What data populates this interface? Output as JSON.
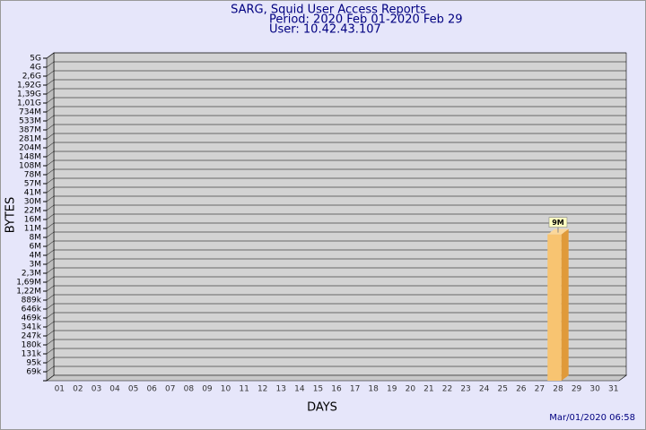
{
  "chart_data": {
    "type": "bar",
    "title": "SARG, Squid User Access Reports",
    "subtitle": [
      "Period: 2020 Feb 01-2020 Feb 29",
      "User: 10.42.43.107"
    ],
    "ylabel": "BYTES",
    "xlabel": "DAYS",
    "annotation": "Mar/01/2020 06:58",
    "categories": [
      "01",
      "02",
      "03",
      "04",
      "05",
      "06",
      "07",
      "08",
      "09",
      "10",
      "11",
      "12",
      "13",
      "14",
      "15",
      "16",
      "17",
      "18",
      "19",
      "20",
      "21",
      "22",
      "23",
      "24",
      "25",
      "26",
      "27",
      "28",
      "29",
      "30",
      "31"
    ],
    "values": [
      null,
      null,
      null,
      null,
      null,
      null,
      null,
      null,
      null,
      null,
      null,
      null,
      null,
      null,
      null,
      null,
      null,
      null,
      null,
      null,
      null,
      null,
      null,
      null,
      null,
      null,
      null,
      9000000,
      null,
      null,
      null
    ],
    "value_labels": [
      null,
      null,
      null,
      null,
      null,
      null,
      null,
      null,
      null,
      null,
      null,
      null,
      null,
      null,
      null,
      null,
      null,
      null,
      null,
      null,
      null,
      null,
      null,
      null,
      null,
      null,
      null,
      "9M",
      null,
      null,
      null
    ],
    "color": "#f8c471",
    "ylim": [
      0,
      5000000000
    ],
    "yticks": [
      {
        "value": 69000,
        "label": "69k"
      },
      {
        "value": 95000,
        "label": "95k"
      },
      {
        "value": 131000,
        "label": "131k"
      },
      {
        "value": 180000,
        "label": "180k"
      },
      {
        "value": 247000,
        "label": "247k"
      },
      {
        "value": 341000,
        "label": "341k"
      },
      {
        "value": 469000,
        "label": "469k"
      },
      {
        "value": 646000,
        "label": "646k"
      },
      {
        "value": 889000,
        "label": "889k"
      },
      {
        "value": 1220000,
        "label": "1,22M"
      },
      {
        "value": 1690000,
        "label": "1,69M"
      },
      {
        "value": 2300000,
        "label": "2,3M"
      },
      {
        "value": 3000000,
        "label": "3M"
      },
      {
        "value": 4000000,
        "label": "4M"
      },
      {
        "value": 6000000,
        "label": "6M"
      },
      {
        "value": 8000000,
        "label": "8M"
      },
      {
        "value": 11000000,
        "label": "11M"
      },
      {
        "value": 16000000,
        "label": "16M"
      },
      {
        "value": 22000000,
        "label": "22M"
      },
      {
        "value": 30000000,
        "label": "30M"
      },
      {
        "value": 41000000,
        "label": "41M"
      },
      {
        "value": 57000000,
        "label": "57M"
      },
      {
        "value": 78000000,
        "label": "78M"
      },
      {
        "value": 108000000,
        "label": "108M"
      },
      {
        "value": 148000000,
        "label": "148M"
      },
      {
        "value": 204000000,
        "label": "204M"
      },
      {
        "value": 281000000,
        "label": "281M"
      },
      {
        "value": 387000000,
        "label": "387M"
      },
      {
        "value": 533000000,
        "label": "533M"
      },
      {
        "value": 734000000,
        "label": "734M"
      },
      {
        "value": 1010000000,
        "label": "1,01G"
      },
      {
        "value": 1390000000,
        "label": "1,39G"
      },
      {
        "value": 1920000000,
        "label": "1,92G"
      },
      {
        "value": 2600000000,
        "label": "2,6G"
      },
      {
        "value": 4000000000,
        "label": "4G"
      },
      {
        "value": 5000000000,
        "label": "5G"
      }
    ],
    "grid": true
  }
}
